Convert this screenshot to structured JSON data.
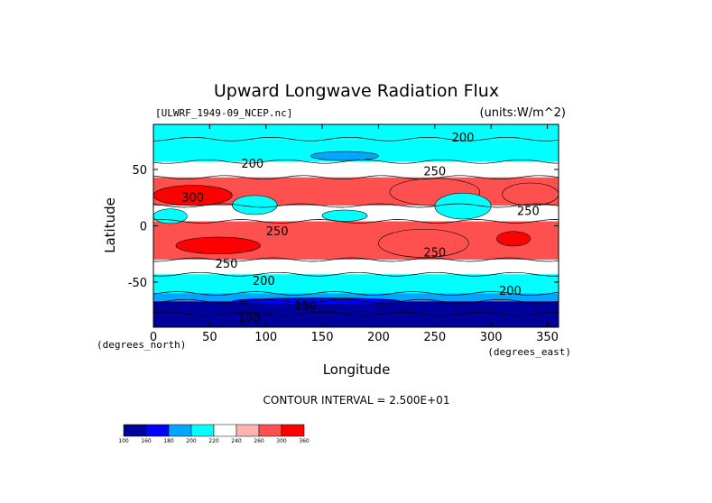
{
  "chart_data": {
    "type": "heatmap",
    "title": "Upward Longwave Radiation Flux",
    "source_label": "[ULWRF_1949-09_NCEP.nc]",
    "units_label": "(units:W/m^2)",
    "xlabel": "Longitude",
    "ylabel": "Latitude",
    "x_unit_label": "(degrees_east)",
    "y_unit_label": "(degrees_north)",
    "xlim": [
      0,
      360
    ],
    "ylim": [
      -90,
      90
    ],
    "x_ticks": [
      0,
      50,
      100,
      150,
      200,
      250,
      300,
      350
    ],
    "y_ticks": [
      50,
      0,
      -50
    ],
    "contour_interval_text": "CONTOUR INTERVAL = 2.500E+01",
    "contour_labels": [
      {
        "text": "200",
        "lon": 275,
        "lat": 78
      },
      {
        "text": "200",
        "lon": 88,
        "lat": 55
      },
      {
        "text": "250",
        "lon": 250,
        "lat": 48
      },
      {
        "text": "300",
        "lon": 35,
        "lat": 25
      },
      {
        "text": "250",
        "lon": 333,
        "lat": 13
      },
      {
        "text": "250",
        "lon": 110,
        "lat": -5
      },
      {
        "text": "250",
        "lon": 250,
        "lat": -24
      },
      {
        "text": "250",
        "lon": 65,
        "lat": -34
      },
      {
        "text": "200",
        "lon": 98,
        "lat": -49
      },
      {
        "text": "200",
        "lon": 317,
        "lat": -58
      },
      {
        "text": "150",
        "lon": 135,
        "lat": -71
      },
      {
        "text": "100",
        "lon": 85,
        "lat": -82
      }
    ],
    "colorbar": {
      "levels": [
        "100",
        "160",
        "180",
        "200",
        "220",
        "240",
        "260",
        "300",
        "360"
      ],
      "colors": [
        "#00009a",
        "#0000ff",
        "#00a6ff",
        "#00ffff",
        "#ffffff",
        "#ffb3b3",
        "#ff5050",
        "#ff0000"
      ]
    },
    "latitude_bands": [
      {
        "lat_from": 90,
        "lat_to": 77,
        "value": 205
      },
      {
        "lat_from": 77,
        "lat_to": 57,
        "value": 210
      },
      {
        "lat_from": 57,
        "lat_to": 43,
        "value": 235
      },
      {
        "lat_from": 43,
        "lat_to": 18,
        "value": 265
      },
      {
        "lat_from": 18,
        "lat_to": 4,
        "value": 235
      },
      {
        "lat_from": 4,
        "lat_to": -30,
        "value": 270
      },
      {
        "lat_from": -30,
        "lat_to": -43,
        "value": 230
      },
      {
        "lat_from": -43,
        "lat_to": -60,
        "value": 205
      },
      {
        "lat_from": -60,
        "lat_to": -67,
        "value": 180
      },
      {
        "lat_from": -67,
        "lat_to": -90,
        "value": 150
      }
    ],
    "regions": [
      {
        "lon": [
          0,
          70
        ],
        "lat": [
          36,
          18
        ],
        "value": 305
      },
      {
        "lon": [
          210,
          290
        ],
        "lat": [
          42,
          18
        ],
        "value": 275
      },
      {
        "lon": [
          310,
          360
        ],
        "lat": [
          38,
          18
        ],
        "value": 275
      },
      {
        "lon": [
          0,
          30
        ],
        "lat": [
          15,
          2
        ],
        "value": 210
      },
      {
        "lon": [
          70,
          110
        ],
        "lat": [
          27,
          10
        ],
        "value": 205
      },
      {
        "lon": [
          150,
          190
        ],
        "lat": [
          14,
          4
        ],
        "value": 205
      },
      {
        "lon": [
          250,
          300
        ],
        "lat": [
          29,
          6
        ],
        "value": 210
      },
      {
        "lon": [
          20,
          95
        ],
        "lat": [
          -10,
          -25
        ],
        "value": 305
      },
      {
        "lon": [
          200,
          280
        ],
        "lat": [
          -3,
          -28
        ],
        "value": 275
      },
      {
        "lon": [
          305,
          335
        ],
        "lat": [
          -5,
          -18
        ],
        "value": 305
      },
      {
        "lon": [
          140,
          200
        ],
        "lat": [
          66,
          58
        ],
        "value": 190
      },
      {
        "lon": [
          70,
          220
        ],
        "lat": [
          -64,
          -70
        ],
        "value": 165
      }
    ]
  }
}
